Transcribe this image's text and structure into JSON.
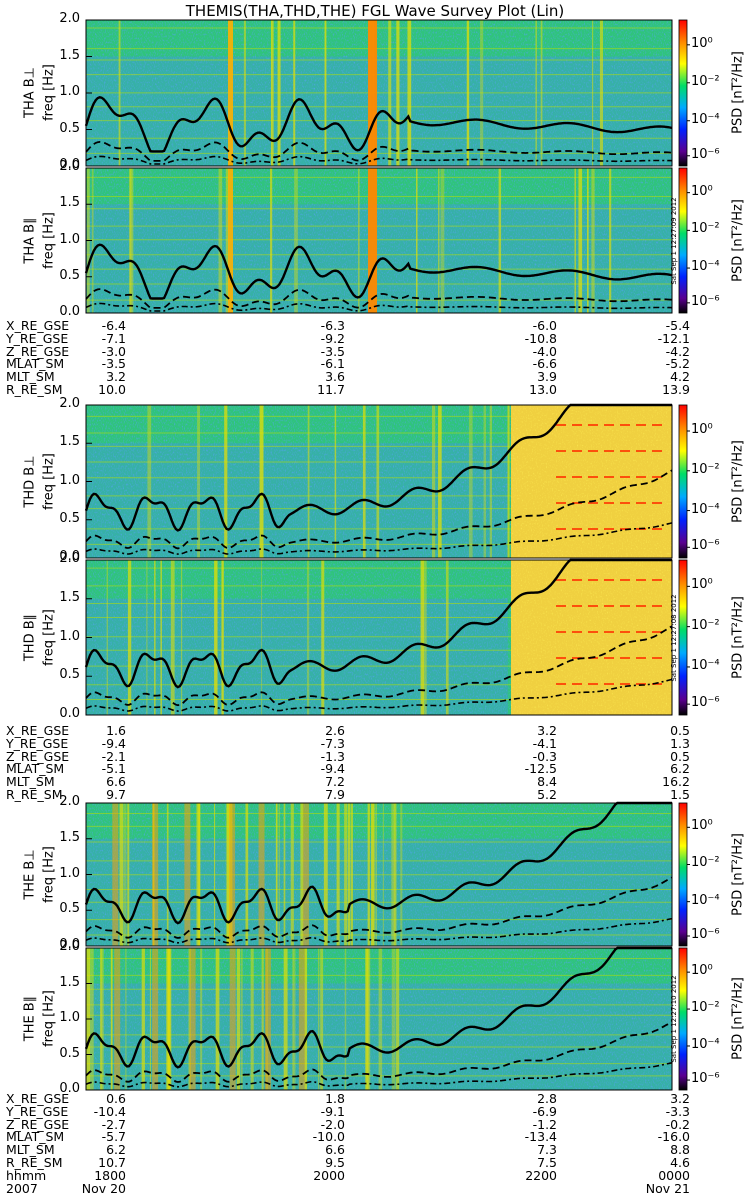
{
  "title": "THEMIS(THA,THD,THE) FGL Wave Survey Plot (Lin)",
  "chart_data": {
    "type": "heatmap",
    "y_axis_label": "freq [Hz]",
    "y_ticks": [
      "0.0",
      "0.5",
      "1.0",
      "1.5",
      "2.0"
    ],
    "ylim": [
      0,
      2.0
    ],
    "colorbar": {
      "label": "PSD [nT²/Hz]",
      "ticks": [
        "10⁰",
        "10⁻²",
        "10⁻⁴",
        "10⁻⁶"
      ],
      "colors": [
        "#000000",
        "#5a0090",
        "#0022ff",
        "#00aaff",
        "#00dd66",
        "#ffff00",
        "#ff8800",
        "#ff0000"
      ]
    },
    "panels": [
      {
        "label": "THA B⊥",
        "probe": "THA"
      },
      {
        "label": "THA B∥",
        "probe": "THA"
      },
      {
        "label": "THD B⊥",
        "probe": "THD"
      },
      {
        "label": "THD B∥",
        "probe": "THD"
      },
      {
        "label": "THE B⊥",
        "probe": "THE"
      },
      {
        "label": "THE B∥",
        "probe": "THE"
      }
    ],
    "side_stamps": [
      "Sat Sep 1 12:27:09 2012",
      "Sat Sep 1 12:27:08 2012",
      "Sat Sep 1 12:27:10 2012"
    ],
    "ephemeris": [
      {
        "probe": "THA",
        "rows": [
          {
            "name": "X_RE_GSE",
            "values": [
              "-6.4",
              "-6.3",
              "-6.0",
              "-5.4"
            ]
          },
          {
            "name": "Y_RE_GSE",
            "values": [
              "-7.1",
              "-9.2",
              "-10.8",
              "-12.1"
            ]
          },
          {
            "name": "Z_RE_GSE",
            "values": [
              "-3.0",
              "-3.5",
              "-4.0",
              "-4.2"
            ]
          },
          {
            "name": "MLAT_SM",
            "values": [
              "-3.5",
              "-6.1",
              "-6.6",
              "-5.2"
            ]
          },
          {
            "name": "MLT_SM",
            "values": [
              "3.2",
              "3.6",
              "3.9",
              "4.2"
            ]
          },
          {
            "name": "R_RE_SM",
            "values": [
              "10.0",
              "11.7",
              "13.0",
              "13.9"
            ]
          }
        ]
      },
      {
        "probe": "THD",
        "rows": [
          {
            "name": "X_RE_GSE",
            "values": [
              "1.6",
              "2.6",
              "3.2",
              "0.5"
            ]
          },
          {
            "name": "Y_RE_GSE",
            "values": [
              "-9.4",
              "-7.3",
              "-4.1",
              "1.3"
            ]
          },
          {
            "name": "Z_RE_GSE",
            "values": [
              "-2.1",
              "-1.3",
              "-0.3",
              "0.5"
            ]
          },
          {
            "name": "MLAT_SM",
            "values": [
              "-5.1",
              "-9.4",
              "-12.5",
              "6.2"
            ]
          },
          {
            "name": "MLT_SM",
            "values": [
              "6.6",
              "7.2",
              "8.4",
              "16.2"
            ]
          },
          {
            "name": "R_RE_SM",
            "values": [
              "9.7",
              "7.9",
              "5.2",
              "1.5"
            ]
          }
        ]
      },
      {
        "probe": "THE",
        "rows": [
          {
            "name": "X_RE_GSE",
            "values": [
              "0.6",
              "1.8",
              "2.8",
              "3.2"
            ]
          },
          {
            "name": "Y_RE_GSE",
            "values": [
              "-10.4",
              "-9.1",
              "-6.9",
              "-3.3"
            ]
          },
          {
            "name": "Z_RE_GSE",
            "values": [
              "-2.7",
              "-2.0",
              "-1.2",
              "-0.2"
            ]
          },
          {
            "name": "MLAT_SM",
            "values": [
              "-5.7",
              "-10.0",
              "-13.4",
              "-16.0"
            ]
          },
          {
            "name": "MLT_SM",
            "values": [
              "6.2",
              "6.6",
              "7.3",
              "8.8"
            ]
          },
          {
            "name": "R_RE_SM",
            "values": [
              "10.7",
              "9.5",
              "7.5",
              "4.6"
            ]
          },
          {
            "name": "hhmm",
            "values": [
              "1800",
              "2000",
              "2200",
              "0000"
            ]
          },
          {
            "name": "2007",
            "values": [
              "Nov 20",
              "",
              "",
              "Nov 21"
            ]
          }
        ]
      }
    ]
  }
}
